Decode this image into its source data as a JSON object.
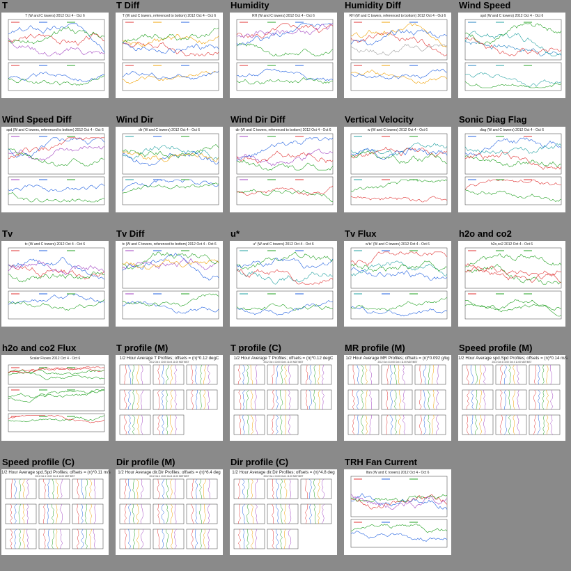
{
  "tiles": [
    {
      "title": "T",
      "heading": "T (W and C towers) 2012 Oct 4 - Oct 6",
      "type": "ts",
      "colors": [
        "#e03030",
        "#2060e0",
        "#20a020",
        "#a040c0"
      ]
    },
    {
      "title": "T Diff",
      "heading": "T (W and C towers, referenced to bottom) 2012 Oct 4 - Oct 6",
      "type": "ts",
      "colors": [
        "#e03030",
        "#f0a000",
        "#2060e0",
        "#20a020"
      ]
    },
    {
      "title": "Humidity",
      "heading": "RH (W and C towers) 2012 Oct 4 - Oct 6",
      "type": "ts",
      "colors": [
        "#e03030",
        "#20a020",
        "#2060e0",
        "#a040c0"
      ]
    },
    {
      "title": "Humidity Diff",
      "heading": "RH (W and C towers, referenced to bottom) 2012 Oct 4 - Oct 6",
      "type": "ts",
      "colors": [
        "#e03030",
        "#f0a000",
        "#2060e0",
        "#a0a0a0"
      ]
    },
    {
      "title": "Wind Speed",
      "heading": "spd (W and C towers) 2012 Oct 4 - Oct 6",
      "type": "ts",
      "colors": [
        "#2080c0",
        "#20a0a0",
        "#20a020",
        "#e03030"
      ]
    },
    {
      "title": "Wind Speed Diff",
      "heading": "spd (W and C towers, referenced to bottom) 2012 Oct 4 - Oct 6",
      "type": "ts",
      "colors": [
        "#a040c0",
        "#2060e0",
        "#20a020",
        "#e03030"
      ]
    },
    {
      "title": "Wind Dir",
      "heading": "dir (W and C towers) 2012 Oct 4 - Oct 6",
      "type": "ts",
      "colors": [
        "#20a0a0",
        "#2060e0",
        "#20a020",
        "#f0a000"
      ]
    },
    {
      "title": "Wind Dir Diff",
      "heading": "dir (W and C towers, referenced to bottom) 2012 Oct 4 - Oct 6",
      "type": "ts",
      "colors": [
        "#a040c0",
        "#20a020",
        "#e03030",
        "#2060e0"
      ]
    },
    {
      "title": "Vertical Velocity",
      "heading": "w (W and C towers) 2012 Oct 4 - Oct 6",
      "type": "ts",
      "colors": [
        "#20a0a0",
        "#e03030",
        "#20a020",
        "#2060e0"
      ]
    },
    {
      "title": "Sonic Diag Flag",
      "heading": "diag (W and C towers) 2012 Oct 4 - Oct 6",
      "type": "ts",
      "colors": [
        "#2060e0",
        "#20a020",
        "#e03030",
        "#20a0a0"
      ]
    },
    {
      "title": "Tv",
      "heading": "tc (W and C towers) 2012 Oct 4 - Oct 6",
      "type": "ts",
      "colors": [
        "#e03030",
        "#2060e0",
        "#20a020",
        "#a040c0"
      ]
    },
    {
      "title": "Tv Diff",
      "heading": "tc (W and C towers, referenced to bottom) 2012 Oct 4 - Oct 6",
      "type": "ts",
      "colors": [
        "#a040c0",
        "#2060e0",
        "#20a020",
        "#f0a000"
      ]
    },
    {
      "title": "u*",
      "heading": "u* (W and C towers) 2012 Oct 4 - Oct 6",
      "type": "ts",
      "colors": [
        "#20a0a0",
        "#20a020",
        "#2060e0",
        "#e03030"
      ]
    },
    {
      "title": "Tv Flux",
      "heading": "w'tc' (W and C towers) 2012 Oct 4 - Oct 6",
      "type": "ts",
      "colors": [
        "#20a0a0",
        "#2060e0",
        "#20a020",
        "#e03030"
      ]
    },
    {
      "title": "h2o and co2",
      "heading": "h2o,co2 2012 Oct 4 - Oct 6",
      "type": "ts",
      "colors": [
        "#e03030",
        "#20a020",
        "#20a020",
        "#e03030"
      ]
    },
    {
      "title": "h2o and co2 Flux",
      "heading": "Scalar Fluxes 2012 Oct 4 - Oct 6",
      "type": "flux",
      "colors": [
        "#e03030",
        "#20a020",
        "#20a020",
        "#e03030"
      ]
    },
    {
      "title": "T profile (M)",
      "heading": "1/2 Hour Average T Profiles; offsets = (n)*0.12 degC",
      "sub": "2012 Oct 4 10:00 Oct 4 11:00 MDT/MST",
      "type": "prof",
      "colors": [
        "#e03030",
        "#2060e0",
        "#20a020",
        "#f0a000",
        "#a040c0",
        "#20a0a0"
      ]
    },
    {
      "title": "T profile (C)",
      "heading": "1/2 Hour Average T Profiles; offsets = (n)*0.12 degC",
      "sub": "2012 Oct 4 10:00 Oct 4 11:00 MDT/MST",
      "type": "prof",
      "colors": [
        "#e03030",
        "#2060e0",
        "#20a020",
        "#f0a000",
        "#a040c0",
        "#20a0a0"
      ]
    },
    {
      "title": "MR profile (M)",
      "heading": "1/2 Hour Average MR Profiles; offsets = (n)*0.092 g/kg",
      "sub": "2012 Oct 4 10:00 Oct 4 11:00 MDT/MST",
      "type": "prof",
      "colors": [
        "#e03030",
        "#2060e0",
        "#20a020",
        "#f0a000",
        "#a040c0",
        "#20a0a0"
      ]
    },
    {
      "title": "Speed profile (M)",
      "heading": "1/2 Hour Average spd.Spd Profiles; offsets = (n)*0.14 m/s",
      "sub": "2012 Oct 4 10:00 Oct 4 11:00 MDT/MST",
      "type": "prof",
      "colors": [
        "#e03030",
        "#2060e0",
        "#20a020",
        "#f0a000",
        "#a040c0",
        "#20a0a0"
      ]
    },
    {
      "title": "Speed profile (C)",
      "heading": "1/2 Hour Average spd.Spd Profiles; offsets = (n)*0.11 m/s",
      "sub": "2012 Oct 4 10:00 Oct 4 11:00 MDT/MST",
      "type": "prof",
      "colors": [
        "#e03030",
        "#2060e0",
        "#20a020",
        "#f0a000",
        "#a040c0",
        "#20a0a0"
      ]
    },
    {
      "title": "Dir profile (M)",
      "heading": "1/2 Hour Average dir.Dir Profiles; offsets = (n)*6.4 deg",
      "sub": "2012 Oct 4 10:00 Oct 4 11:00 MDT/MST",
      "type": "prof",
      "colors": [
        "#e03030",
        "#2060e0",
        "#20a020",
        "#f0a000",
        "#a040c0",
        "#20a0a0"
      ]
    },
    {
      "title": "Dir profile (C)",
      "heading": "1/2 Hour Average dir.Dir Profiles; offsets = (n)*4.8 deg",
      "sub": "2012 Oct 4 10:00 Oct 4 11:00 MDT/MST",
      "type": "prof",
      "colors": [
        "#e03030",
        "#2060e0",
        "#20a020",
        "#f0a000",
        "#a040c0",
        "#20a0a0"
      ]
    },
    {
      "title": "TRH Fan Current",
      "heading": "Ifan (W and C towers) 2012 Oct 4 - Oct 6",
      "type": "ts",
      "colors": [
        "#e03030",
        "#2060e0",
        "#20a020",
        "#a040c0"
      ]
    }
  ]
}
